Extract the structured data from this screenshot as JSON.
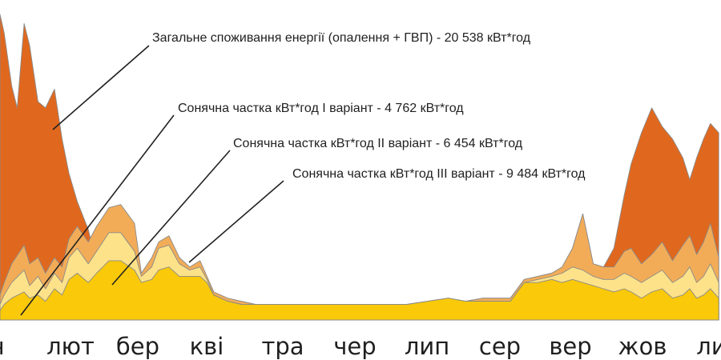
{
  "chart_data": {
    "type": "area",
    "title": "",
    "xlabel": "",
    "ylabel": "",
    "stacking": "overlay",
    "grid": false,
    "legend": "none",
    "ylim": [
      0,
      100
    ],
    "categories": [
      "січ",
      "лют",
      "бер",
      "кві",
      "тра",
      "чер",
      "лип",
      "сер",
      "вер",
      "жов",
      "лис"
    ],
    "category_labels_shown": [
      "ч",
      "лют",
      "бер",
      "кві",
      "тра",
      "чер",
      "лип",
      "сер",
      "вер",
      "жов",
      "ли"
    ],
    "series": [
      {
        "name": "Загальне споживання енергії (опалення + ГВП) - 20 538 кВт*год",
        "color": "#e0681e",
        "x": [
          0.0,
          0.06,
          0.17,
          0.25,
          0.35,
          0.43,
          0.55,
          0.66,
          0.79,
          0.9,
          1.0,
          1.12,
          1.28,
          1.4,
          1.58,
          1.75,
          1.95,
          2.05,
          2.2,
          2.3,
          2.45,
          2.6,
          2.75,
          2.9,
          3.0,
          3.1,
          3.3,
          3.5,
          3.7,
          3.9,
          4.0,
          4.2,
          4.4,
          4.6,
          4.8,
          5.0,
          5.3,
          5.6,
          5.9,
          6.2,
          6.5,
          6.75,
          7.0,
          7.2,
          7.4,
          7.6,
          7.8,
          8.0,
          8.15,
          8.3,
          8.45,
          8.6,
          8.75,
          8.9,
          9.05,
          9.15,
          9.3,
          9.45,
          9.6,
          9.75,
          9.9,
          10.0,
          10.1,
          10.2,
          10.3,
          10.42
        ],
        "values": [
          98,
          92,
          75,
          68,
          95,
          88,
          70,
          68,
          74,
          58,
          47,
          38,
          29,
          18,
          14,
          13,
          11,
          11,
          10,
          12,
          13,
          12,
          10,
          8,
          7,
          6,
          6,
          6,
          5,
          5,
          5,
          5,
          5,
          5,
          5,
          5,
          5,
          5,
          5,
          6,
          7,
          6,
          7,
          7,
          7,
          13,
          14,
          15,
          17,
          23,
          34,
          18,
          17,
          23,
          40,
          50,
          60,
          68,
          62,
          58,
          52,
          45,
          52,
          58,
          63,
          60
        ]
      },
      {
        "name": "Сонячна частка кВт*год III варіант - 9 484 кВт*год",
        "color": "#f2ac58",
        "x": [
          0.0,
          0.06,
          0.17,
          0.35,
          0.43,
          0.55,
          0.66,
          0.79,
          0.9,
          1.0,
          1.12,
          1.28,
          1.4,
          1.58,
          1.75,
          1.95,
          2.05,
          2.2,
          2.3,
          2.45,
          2.6,
          2.75,
          2.9,
          3.0,
          3.1,
          3.3,
          3.5,
          3.7,
          3.9,
          4.0,
          4.2,
          4.4,
          4.6,
          4.8,
          5.0,
          5.3,
          5.6,
          5.9,
          6.2,
          6.5,
          6.75,
          7.0,
          7.2,
          7.4,
          7.6,
          7.8,
          8.0,
          8.15,
          8.3,
          8.45,
          8.6,
          8.75,
          8.9,
          9.05,
          9.15,
          9.3,
          9.45,
          9.6,
          9.75,
          9.9,
          10.0,
          10.1,
          10.2,
          10.3,
          10.42
        ],
        "values": [
          8,
          12,
          18,
          24,
          18,
          20,
          15,
          20,
          17,
          26,
          30,
          25,
          30,
          36,
          37,
          31,
          15,
          20,
          25,
          27,
          20,
          17,
          19,
          14,
          9,
          7,
          6,
          5,
          5,
          5,
          5,
          5,
          5,
          5,
          5,
          5,
          5,
          5,
          6,
          7,
          6,
          7,
          7,
          7,
          13,
          14,
          15,
          17,
          23,
          34,
          18,
          17,
          17,
          22,
          23,
          18,
          21,
          25,
          19,
          24,
          27,
          21,
          25,
          31,
          20
        ]
      },
      {
        "name": "Сонячна частка кВт*год II варіант - 6 454 кВт*год",
        "color": "#fde28a",
        "x": [
          0.0,
          0.06,
          0.17,
          0.35,
          0.43,
          0.55,
          0.66,
          0.79,
          0.9,
          1.0,
          1.12,
          1.28,
          1.4,
          1.58,
          1.75,
          1.95,
          2.05,
          2.2,
          2.3,
          2.45,
          2.6,
          2.75,
          2.9,
          3.0,
          3.1,
          3.3,
          3.5,
          3.7,
          3.9,
          4.0,
          4.2,
          4.4,
          4.6,
          4.8,
          5.0,
          5.3,
          5.6,
          5.9,
          6.2,
          6.5,
          6.75,
          7.0,
          7.2,
          7.4,
          7.6,
          7.8,
          8.0,
          8.15,
          8.3,
          8.45,
          8.6,
          8.75,
          8.9,
          9.05,
          9.15,
          9.3,
          9.45,
          9.6,
          9.75,
          9.9,
          10.0,
          10.1,
          10.2,
          10.3,
          10.42
        ],
        "values": [
          5,
          8,
          12,
          16,
          11,
          14,
          10,
          15,
          12,
          20,
          23,
          18,
          22,
          28,
          28,
          22,
          14,
          17,
          23,
          24,
          18,
          16,
          17,
          13,
          8,
          6,
          5,
          5,
          5,
          5,
          5,
          5,
          5,
          5,
          5,
          5,
          5,
          5,
          6,
          7,
          6,
          6,
          6,
          6,
          12,
          13,
          14,
          15,
          17,
          16,
          14,
          13,
          13,
          15,
          14,
          12,
          14,
          16,
          12,
          14,
          17,
          12,
          14,
          18,
          12
        ]
      },
      {
        "name": "Сонячна частка кВт*год I варіант - 4 762 кВт*год",
        "color": "#f9c90a",
        "x": [
          0.0,
          0.06,
          0.17,
          0.35,
          0.43,
          0.55,
          0.66,
          0.79,
          0.9,
          1.0,
          1.12,
          1.28,
          1.4,
          1.58,
          1.75,
          1.95,
          2.05,
          2.2,
          2.3,
          2.45,
          2.6,
          2.75,
          2.9,
          3.0,
          3.1,
          3.3,
          3.5,
          3.7,
          3.9,
          4.0,
          4.2,
          4.4,
          4.6,
          4.8,
          5.0,
          5.3,
          5.6,
          5.9,
          6.2,
          6.5,
          6.75,
          7.0,
          7.2,
          7.4,
          7.6,
          7.8,
          8.0,
          8.15,
          8.3,
          8.45,
          8.6,
          8.75,
          8.9,
          9.05,
          9.15,
          9.3,
          9.45,
          9.6,
          9.75,
          9.9,
          10.0,
          10.1,
          10.2,
          10.3,
          10.42
        ],
        "values": [
          3,
          5,
          7,
          9,
          7,
          8,
          6,
          10,
          8,
          13,
          15,
          12,
          15,
          19,
          19,
          16,
          12,
          13,
          16,
          17,
          14,
          14,
          14,
          12,
          8,
          6,
          5,
          5,
          5,
          5,
          5,
          5,
          5,
          5,
          5,
          5,
          5,
          5,
          6,
          7,
          6,
          6,
          6,
          6,
          12,
          12,
          13,
          12,
          13,
          12,
          11,
          10,
          9,
          10,
          9,
          7,
          9,
          10,
          7,
          8,
          10,
          7,
          8,
          10,
          7
        ]
      }
    ],
    "annotations": [
      {
        "text": "Загальне споживання енергії (опалення + ГВП) - 20 538 кВт*год",
        "target_series": 0
      },
      {
        "text": "Сонячна частка кВт*год I варіант - 4 762 кВт*год",
        "target_series": 3
      },
      {
        "text": "Сонячна частка кВт*год II варіант - 6 454 кВт*год",
        "target_series": 2
      },
      {
        "text": "Сонячна частка кВт*год III варіант - 9 484 кВт*год",
        "target_series": 1
      }
    ]
  }
}
